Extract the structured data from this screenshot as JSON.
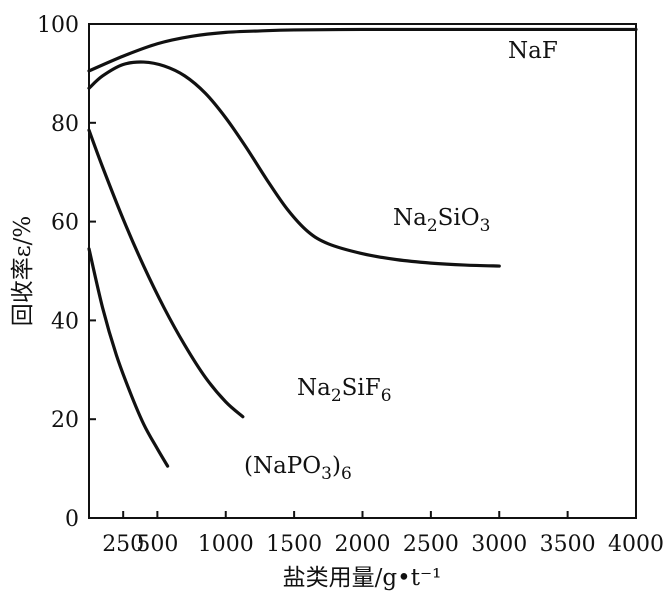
{
  "chart_data": {
    "type": "line",
    "xlabel": "盐类用量/g•t⁻¹",
    "ylabel": "回收率ε/%",
    "xlim": [
      0,
      4000
    ],
    "ylim": [
      0,
      100
    ],
    "x_ticks": [
      250,
      500,
      1000,
      1500,
      2000,
      2500,
      3000,
      3500,
      4000
    ],
    "x_tick_labels": [
      "250",
      "500",
      "1000",
      "1500",
      "2000",
      "2500",
      "3000",
      "3500",
      "4000"
    ],
    "y_ticks": [
      0,
      20,
      40,
      60,
      80,
      100
    ],
    "y_tick_labels": [
      "0",
      "20",
      "40",
      "60",
      "80",
      "100"
    ],
    "grid": false,
    "legend": "none",
    "series": [
      {
        "name": "NaF",
        "label_main": "NaF",
        "label_sub": "",
        "label_tail": "",
        "label_tail_sub": "",
        "x": [
          0,
          250,
          500,
          750,
          1000,
          1250,
          1500,
          2000,
          2500,
          3000,
          3500,
          4000
        ],
        "y": [
          90.5,
          93.5,
          96.0,
          97.5,
          98.3,
          98.6,
          98.8,
          98.9,
          98.9,
          98.9,
          98.9,
          98.9
        ]
      },
      {
        "name": "Na₂SiO₃",
        "label_main": "Na",
        "label_sub": "2",
        "label_tail": "SiO",
        "label_tail_sub": "3",
        "x": [
          0,
          100,
          250,
          400,
          550,
          700,
          850,
          1000,
          1150,
          1300,
          1450,
          1600,
          1750,
          2000,
          2250,
          2500,
          2750,
          3000
        ],
        "y": [
          87,
          89.5,
          91.8,
          92.3,
          91.5,
          89.5,
          86,
          81,
          75,
          68.5,
          62.5,
          58,
          55.5,
          53.5,
          52.3,
          51.6,
          51.2,
          51.0
        ]
      },
      {
        "name": "Na₂SiF₆",
        "label_main": "Na",
        "label_sub": "2",
        "label_tail": "SiF",
        "label_tail_sub": "6",
        "x": [
          0,
          100,
          250,
          400,
          550,
          700,
          850,
          1000,
          1125
        ],
        "y": [
          78.5,
          71,
          60.5,
          51,
          42.5,
          35,
          28.5,
          23.5,
          20.5
        ]
      },
      {
        "name": "(NaPO₃)₆",
        "label_main": "(NaPO",
        "label_sub": "3",
        "label_tail": ")",
        "label_tail_sub": "6",
        "x": [
          0,
          100,
          200,
          300,
          400,
          500,
          575
        ],
        "y": [
          54.5,
          42.5,
          33,
          25.5,
          19,
          14,
          10.5
        ]
      }
    ]
  }
}
